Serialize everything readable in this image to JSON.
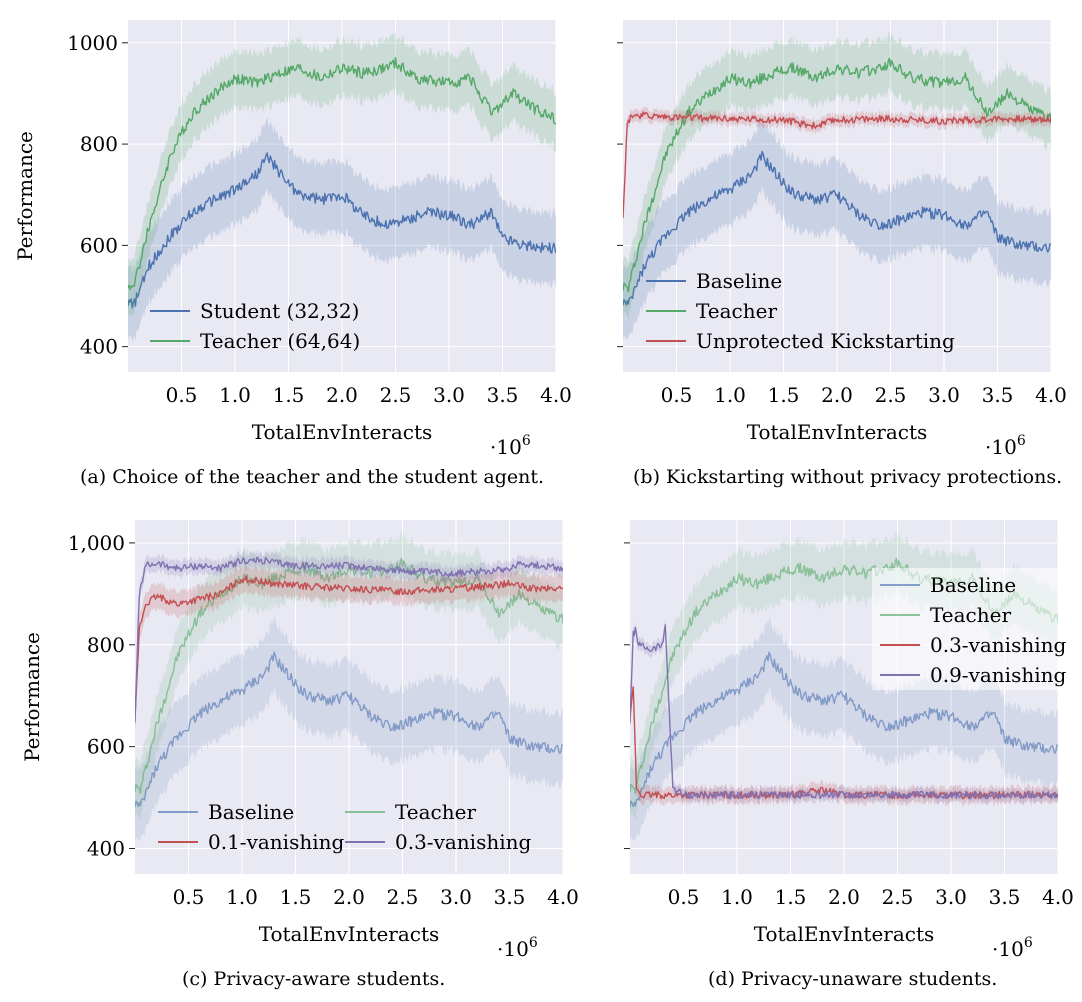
{
  "figure": {
    "panels": [
      "a",
      "b",
      "c",
      "d"
    ]
  },
  "colors": {
    "plot_bg": "#e9e9f3",
    "grid": "#ffffff",
    "blue": "#4c72b0",
    "green": "#55a868",
    "red": "#c44e52",
    "purple": "#8172b2"
  },
  "chart_data": [
    {
      "id": "a",
      "type": "line",
      "caption": "(a) Choice of the teacher and the student agent.",
      "xlabel": "TotalEnvInteracts",
      "ylabel": "Performance",
      "x_multiplier": "·10",
      "x_multiplier_exp": "6",
      "xlim": [
        0,
        4000000
      ],
      "ylim": [
        350,
        1045
      ],
      "xticks": [
        "0.5",
        "1.0",
        "1.5",
        "2.0",
        "2.5",
        "3.0",
        "3.5",
        "4.0"
      ],
      "yticks": [
        "400",
        "600",
        "800",
        "1000"
      ],
      "ytick_values": [
        400,
        600,
        800,
        1000
      ],
      "legend_position": "bottom-left",
      "series": [
        {
          "name": "Student (32,32)",
          "color_key": "blue",
          "band": 70,
          "faded": false,
          "x": [
            0,
            0.05,
            0.2,
            0.4,
            0.6,
            0.8,
            1.0,
            1.2,
            1.3,
            1.45,
            1.6,
            1.8,
            2.0,
            2.2,
            2.4,
            2.6,
            2.8,
            3.0,
            3.2,
            3.4,
            3.5,
            3.7,
            3.9,
            4.0
          ],
          "y": [
            490,
            480,
            560,
            620,
            665,
            690,
            710,
            740,
            775,
            735,
            700,
            690,
            700,
            660,
            640,
            650,
            665,
            660,
            640,
            665,
            615,
            600,
            595,
            595
          ]
        },
        {
          "name": "Teacher (64,64)",
          "color_key": "green",
          "band": 55,
          "faded": false,
          "x": [
            0,
            0.05,
            0.2,
            0.4,
            0.6,
            0.8,
            1.0,
            1.2,
            1.4,
            1.6,
            1.8,
            2.0,
            2.2,
            2.4,
            2.5,
            2.7,
            3.0,
            3.2,
            3.4,
            3.5,
            3.6,
            3.8,
            4.0
          ],
          "y": [
            520,
            515,
            640,
            780,
            860,
            900,
            930,
            920,
            940,
            950,
            930,
            950,
            940,
            950,
            960,
            930,
            920,
            930,
            860,
            880,
            900,
            870,
            850
          ]
        }
      ]
    },
    {
      "id": "b",
      "type": "line",
      "caption": "(b) Kickstarting without privacy protections.",
      "xlabel": "TotalEnvInteracts",
      "ylabel": "",
      "x_multiplier": "·10",
      "x_multiplier_exp": "6",
      "xlim": [
        0,
        4000000
      ],
      "ylim": [
        350,
        1045
      ],
      "xticks": [
        "0.5",
        "1.0",
        "1.5",
        "2.0",
        "2.5",
        "3.0",
        "3.5",
        "4.0"
      ],
      "yticks": [
        "",
        "",
        "",
        ""
      ],
      "ytick_values": [
        400,
        600,
        800,
        1000
      ],
      "legend_position": "bottom-left",
      "series": [
        {
          "name": "Baseline",
          "color_key": "blue",
          "band": 70,
          "faded": false,
          "x": [
            0,
            0.05,
            0.2,
            0.4,
            0.6,
            0.8,
            1.0,
            1.2,
            1.3,
            1.45,
            1.6,
            1.8,
            2.0,
            2.2,
            2.4,
            2.6,
            2.8,
            3.0,
            3.2,
            3.4,
            3.5,
            3.7,
            3.9,
            4.0
          ],
          "y": [
            490,
            480,
            560,
            620,
            665,
            690,
            710,
            740,
            775,
            735,
            700,
            690,
            700,
            660,
            640,
            650,
            665,
            660,
            640,
            665,
            615,
            600,
            595,
            595
          ]
        },
        {
          "name": "Teacher",
          "color_key": "green",
          "band": 55,
          "faded": false,
          "x": [
            0,
            0.05,
            0.2,
            0.4,
            0.6,
            0.8,
            1.0,
            1.2,
            1.4,
            1.6,
            1.8,
            2.0,
            2.2,
            2.4,
            2.5,
            2.7,
            3.0,
            3.2,
            3.4,
            3.5,
            3.6,
            3.8,
            4.0
          ],
          "y": [
            520,
            515,
            640,
            780,
            860,
            900,
            930,
            920,
            940,
            950,
            930,
            950,
            940,
            950,
            960,
            930,
            920,
            930,
            860,
            880,
            900,
            870,
            850
          ]
        },
        {
          "name": "Unprotected Kickstarting",
          "color_key": "red",
          "band": 12,
          "faded": false,
          "x": [
            0,
            0.04,
            0.08,
            0.3,
            0.6,
            1.0,
            1.5,
            1.8,
            2.0,
            2.5,
            3.0,
            3.5,
            4.0
          ],
          "y": [
            660,
            840,
            858,
            855,
            852,
            850,
            848,
            835,
            848,
            850,
            845,
            850,
            848
          ]
        }
      ]
    },
    {
      "id": "c",
      "type": "line",
      "caption": "(c) Privacy-aware students.",
      "xlabel": "TotalEnvInteracts",
      "ylabel": "Performance",
      "x_multiplier": "·10",
      "x_multiplier_exp": "6",
      "xlim": [
        0,
        4000000
      ],
      "ylim": [
        350,
        1045
      ],
      "xticks": [
        "0.5",
        "1.0",
        "1.5",
        "2.0",
        "2.5",
        "3.0",
        "3.5",
        "4.0"
      ],
      "yticks": [
        "400",
        "600",
        "800",
        "1,000"
      ],
      "ytick_values": [
        400,
        600,
        800,
        1000
      ],
      "legend_position": "bottom-left",
      "legend_columns": 2,
      "series": [
        {
          "name": "Baseline",
          "color_key": "blue",
          "band": 70,
          "faded": true,
          "x": [
            0,
            0.05,
            0.2,
            0.4,
            0.6,
            0.8,
            1.0,
            1.2,
            1.3,
            1.45,
            1.6,
            1.8,
            2.0,
            2.2,
            2.4,
            2.6,
            2.8,
            3.0,
            3.2,
            3.4,
            3.5,
            3.7,
            3.9,
            4.0
          ],
          "y": [
            490,
            480,
            560,
            620,
            665,
            690,
            710,
            740,
            775,
            735,
            700,
            690,
            700,
            660,
            640,
            650,
            665,
            660,
            640,
            665,
            615,
            600,
            595,
            595
          ]
        },
        {
          "name": "Teacher",
          "color_key": "green",
          "band": 55,
          "faded": true,
          "x": [
            0,
            0.05,
            0.2,
            0.4,
            0.6,
            0.8,
            1.0,
            1.2,
            1.4,
            1.6,
            1.8,
            2.0,
            2.2,
            2.4,
            2.5,
            2.7,
            3.0,
            3.2,
            3.4,
            3.5,
            3.6,
            3.8,
            4.0
          ],
          "y": [
            520,
            515,
            640,
            780,
            860,
            900,
            930,
            920,
            940,
            950,
            930,
            950,
            940,
            950,
            960,
            930,
            920,
            930,
            860,
            880,
            900,
            870,
            850
          ]
        },
        {
          "name": "0.1-vanishing",
          "color_key": "red",
          "band": 25,
          "faded": false,
          "x": [
            0,
            0.04,
            0.1,
            0.2,
            0.4,
            0.6,
            0.8,
            1.0,
            1.3,
            1.6,
            2.0,
            2.5,
            3.0,
            3.5,
            3.7,
            4.0
          ],
          "y": [
            650,
            830,
            880,
            895,
            880,
            890,
            900,
            930,
            920,
            915,
            910,
            905,
            910,
            920,
            910,
            910
          ]
        },
        {
          "name": "0.3-vanishing",
          "color_key": "purple",
          "band": 15,
          "faded": false,
          "x": [
            0,
            0.04,
            0.1,
            0.2,
            0.4,
            0.6,
            0.8,
            1.0,
            1.2,
            1.5,
            2.0,
            2.5,
            3.0,
            3.5,
            3.6,
            4.0
          ],
          "y": [
            650,
            900,
            955,
            960,
            950,
            955,
            950,
            965,
            965,
            955,
            955,
            945,
            940,
            950,
            960,
            950
          ]
        }
      ]
    },
    {
      "id": "d",
      "type": "line",
      "caption": "(d) Privacy-unaware students.",
      "xlabel": "TotalEnvInteracts",
      "ylabel": "",
      "x_multiplier": "·10",
      "x_multiplier_exp": "6",
      "xlim": [
        0,
        4000000
      ],
      "ylim": [
        350,
        1045
      ],
      "xticks": [
        "0.5",
        "1.0",
        "1.5",
        "2.0",
        "2.5",
        "3.0",
        "3.5",
        "4.0"
      ],
      "yticks": [
        "",
        "",
        "",
        ""
      ],
      "ytick_values": [
        400,
        600,
        800,
        1000
      ],
      "legend_position": "top-right",
      "series": [
        {
          "name": "Baseline",
          "color_key": "blue",
          "band": 70,
          "faded": true,
          "x": [
            0,
            0.05,
            0.2,
            0.4,
            0.6,
            0.8,
            1.0,
            1.2,
            1.3,
            1.45,
            1.6,
            1.8,
            2.0,
            2.2,
            2.4,
            2.6,
            2.8,
            3.0,
            3.2,
            3.4,
            3.5,
            3.7,
            3.9,
            4.0
          ],
          "y": [
            490,
            480,
            560,
            620,
            665,
            690,
            710,
            740,
            775,
            735,
            700,
            690,
            700,
            660,
            640,
            650,
            665,
            660,
            640,
            665,
            615,
            600,
            595,
            595
          ]
        },
        {
          "name": "Teacher",
          "color_key": "green",
          "band": 55,
          "faded": true,
          "x": [
            0,
            0.05,
            0.2,
            0.4,
            0.6,
            0.8,
            1.0,
            1.2,
            1.4,
            1.6,
            1.8,
            2.0,
            2.2,
            2.4,
            2.5,
            2.7,
            3.0,
            3.2,
            3.4,
            3.5,
            3.6,
            3.8,
            4.0
          ],
          "y": [
            520,
            515,
            640,
            780,
            860,
            900,
            930,
            920,
            940,
            950,
            930,
            950,
            940,
            950,
            960,
            930,
            920,
            930,
            860,
            880,
            900,
            870,
            850
          ]
        },
        {
          "name": "0.3-vanishing",
          "color_key": "red",
          "band": 15,
          "faded": false,
          "x": [
            0,
            0.03,
            0.06,
            0.1,
            0.5,
            1.0,
            1.5,
            1.8,
            2.0,
            2.5,
            3.0,
            3.5,
            4.0
          ],
          "y": [
            650,
            720,
            520,
            505,
            505,
            505,
            505,
            515,
            505,
            505,
            505,
            505,
            505
          ]
        },
        {
          "name": "0.9-vanishing",
          "color_key": "purple",
          "band": 12,
          "faded": false,
          "x": [
            0,
            0.03,
            0.05,
            0.08,
            0.2,
            0.3,
            0.33,
            0.36,
            0.4,
            0.5,
            1.0,
            1.5,
            2.0,
            2.5,
            3.0,
            3.5,
            4.0
          ],
          "y": [
            650,
            820,
            830,
            800,
            790,
            800,
            840,
            700,
            520,
            505,
            505,
            505,
            505,
            505,
            505,
            505,
            505
          ]
        }
      ]
    }
  ]
}
